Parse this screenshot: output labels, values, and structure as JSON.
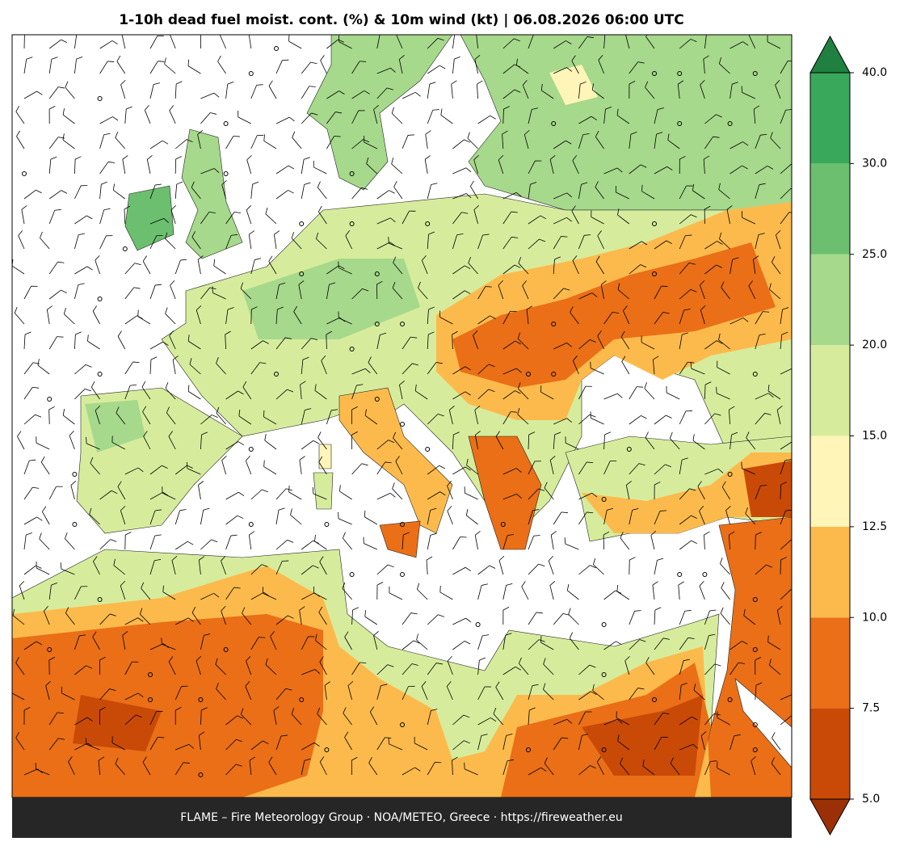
{
  "map": {
    "title": "1-10h dead fuel moist. cont. (%) & 10m wind (kt)  |  06.08.2026 06:00 UTC",
    "footer": "FLAME – Fire Meteorology Group · NOA/METEO, Greece · https://fireweather.eu",
    "colorbar": {
      "levels": [
        {
          "value": 5,
          "label": "5.0"
        },
        {
          "value": 7.5,
          "label": "7.5"
        },
        {
          "value": 10,
          "label": "10.0"
        },
        {
          "value": 12.5,
          "label": "12.5"
        },
        {
          "value": 15,
          "label": "15.0"
        },
        {
          "value": 20,
          "label": "20.0"
        },
        {
          "value": 25,
          "label": "25.0"
        },
        {
          "value": 30,
          "label": "30.0"
        },
        {
          "value": 40,
          "label": "40.0"
        }
      ],
      "colors": [
        "#c94a06",
        "#ea6f17",
        "#fdba4c",
        "#fff5b8",
        "#d6ec9c",
        "#a6d98b",
        "#6bbf6e",
        "#3aa85a"
      ],
      "under_color": "#9b3006",
      "over_color": "#1f8040"
    }
  }
}
